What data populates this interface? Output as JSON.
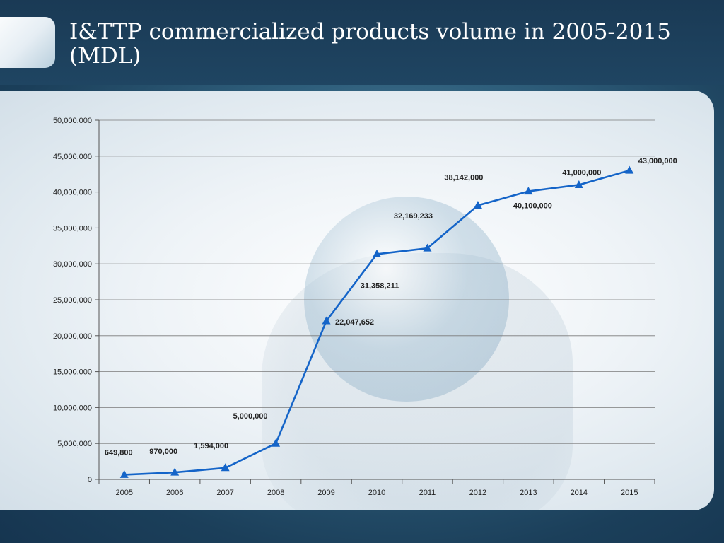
{
  "slide": {
    "title": "I&TTP commercialized products volume in 2005-2015 (MDL)"
  },
  "chart_data": {
    "type": "line",
    "title": "",
    "xlabel": "",
    "ylabel": "",
    "categories": [
      "2005",
      "2006",
      "2007",
      "2008",
      "2009",
      "2010",
      "2011",
      "2012",
      "2013",
      "2014",
      "2015"
    ],
    "series": [
      {
        "values": [
          649800,
          970000,
          1594000,
          5000000,
          22047652,
          31358211,
          32169233,
          38142000,
          40100000,
          41000000,
          43000000
        ],
        "labels": [
          "649,800",
          "970,000",
          "1,594,000",
          "5,000,000",
          "22,047,652",
          "31,358,211",
          "32,169,233",
          "38,142,000",
          "40,100,000",
          "41,000,000",
          "43,000,000"
        ],
        "color": "#1464c8",
        "marker": "triangle"
      }
    ],
    "ylim": [
      0,
      50000000
    ],
    "yticks": [
      0,
      5000000,
      10000000,
      15000000,
      20000000,
      25000000,
      30000000,
      35000000,
      40000000,
      45000000,
      50000000
    ],
    "ytick_labels": [
      "0",
      "5,000,000",
      "10,000,000",
      "15,000,000",
      "20,000,000",
      "25,000,000",
      "30,000,000",
      "35,000,000",
      "40,000,000",
      "45,000,000",
      "50,000,000"
    ],
    "grid": true,
    "legend": "none"
  }
}
